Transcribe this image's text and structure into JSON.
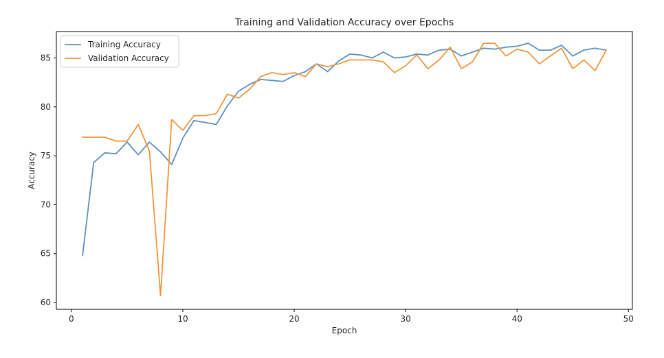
{
  "chart_data": {
    "type": "line",
    "title": "Training and Validation Accuracy over Epochs",
    "xlabel": "Epoch",
    "ylabel": "Accuracy",
    "xlim": [
      -1.35,
      50.35
    ],
    "ylim": [
      59.3,
      87.7
    ],
    "xticks": [
      0,
      10,
      20,
      30,
      40,
      50
    ],
    "yticks": [
      60,
      65,
      70,
      75,
      80,
      85
    ],
    "grid": false,
    "legend_position": "top-left",
    "x": [
      1,
      2,
      3,
      4,
      5,
      6,
      7,
      8,
      9,
      10,
      11,
      12,
      13,
      14,
      15,
      16,
      17,
      18,
      19,
      20,
      21,
      22,
      23,
      24,
      25,
      26,
      27,
      28,
      29,
      30,
      31,
      32,
      33,
      34,
      35,
      36,
      37,
      38,
      39,
      40,
      41,
      42,
      43,
      44,
      45,
      46,
      47,
      48
    ],
    "series": [
      {
        "name": "Training Accuracy",
        "color": "#5b8fc2",
        "values": [
          64.8,
          74.3,
          75.3,
          75.2,
          76.4,
          75.1,
          76.4,
          75.4,
          74.1,
          76.8,
          78.6,
          78.4,
          78.2,
          80.1,
          81.6,
          82.3,
          82.8,
          82.7,
          82.6,
          83.2,
          83.6,
          84.4,
          83.6,
          84.7,
          85.4,
          85.3,
          85.0,
          85.6,
          85.0,
          85.1,
          85.4,
          85.3,
          85.8,
          85.9,
          85.2,
          85.6,
          86.0,
          85.9,
          86.1,
          86.2,
          86.5,
          85.8,
          85.8,
          86.3,
          85.2,
          85.8,
          86.0,
          85.8
        ]
      },
      {
        "name": "Validation Accuracy",
        "color": "#f0963c",
        "values": [
          76.9,
          76.9,
          76.9,
          76.5,
          76.5,
          78.2,
          75.5,
          60.7,
          78.7,
          77.6,
          79.1,
          79.1,
          79.3,
          81.3,
          80.9,
          81.8,
          83.1,
          83.5,
          83.3,
          83.5,
          83.1,
          84.4,
          84.1,
          84.4,
          84.8,
          84.8,
          84.8,
          84.6,
          83.5,
          84.2,
          85.3,
          83.9,
          84.8,
          86.1,
          83.9,
          84.6,
          86.5,
          86.5,
          85.2,
          85.9,
          85.6,
          84.4,
          85.2,
          86.0,
          83.9,
          84.8,
          83.7,
          85.8
        ]
      }
    ]
  }
}
